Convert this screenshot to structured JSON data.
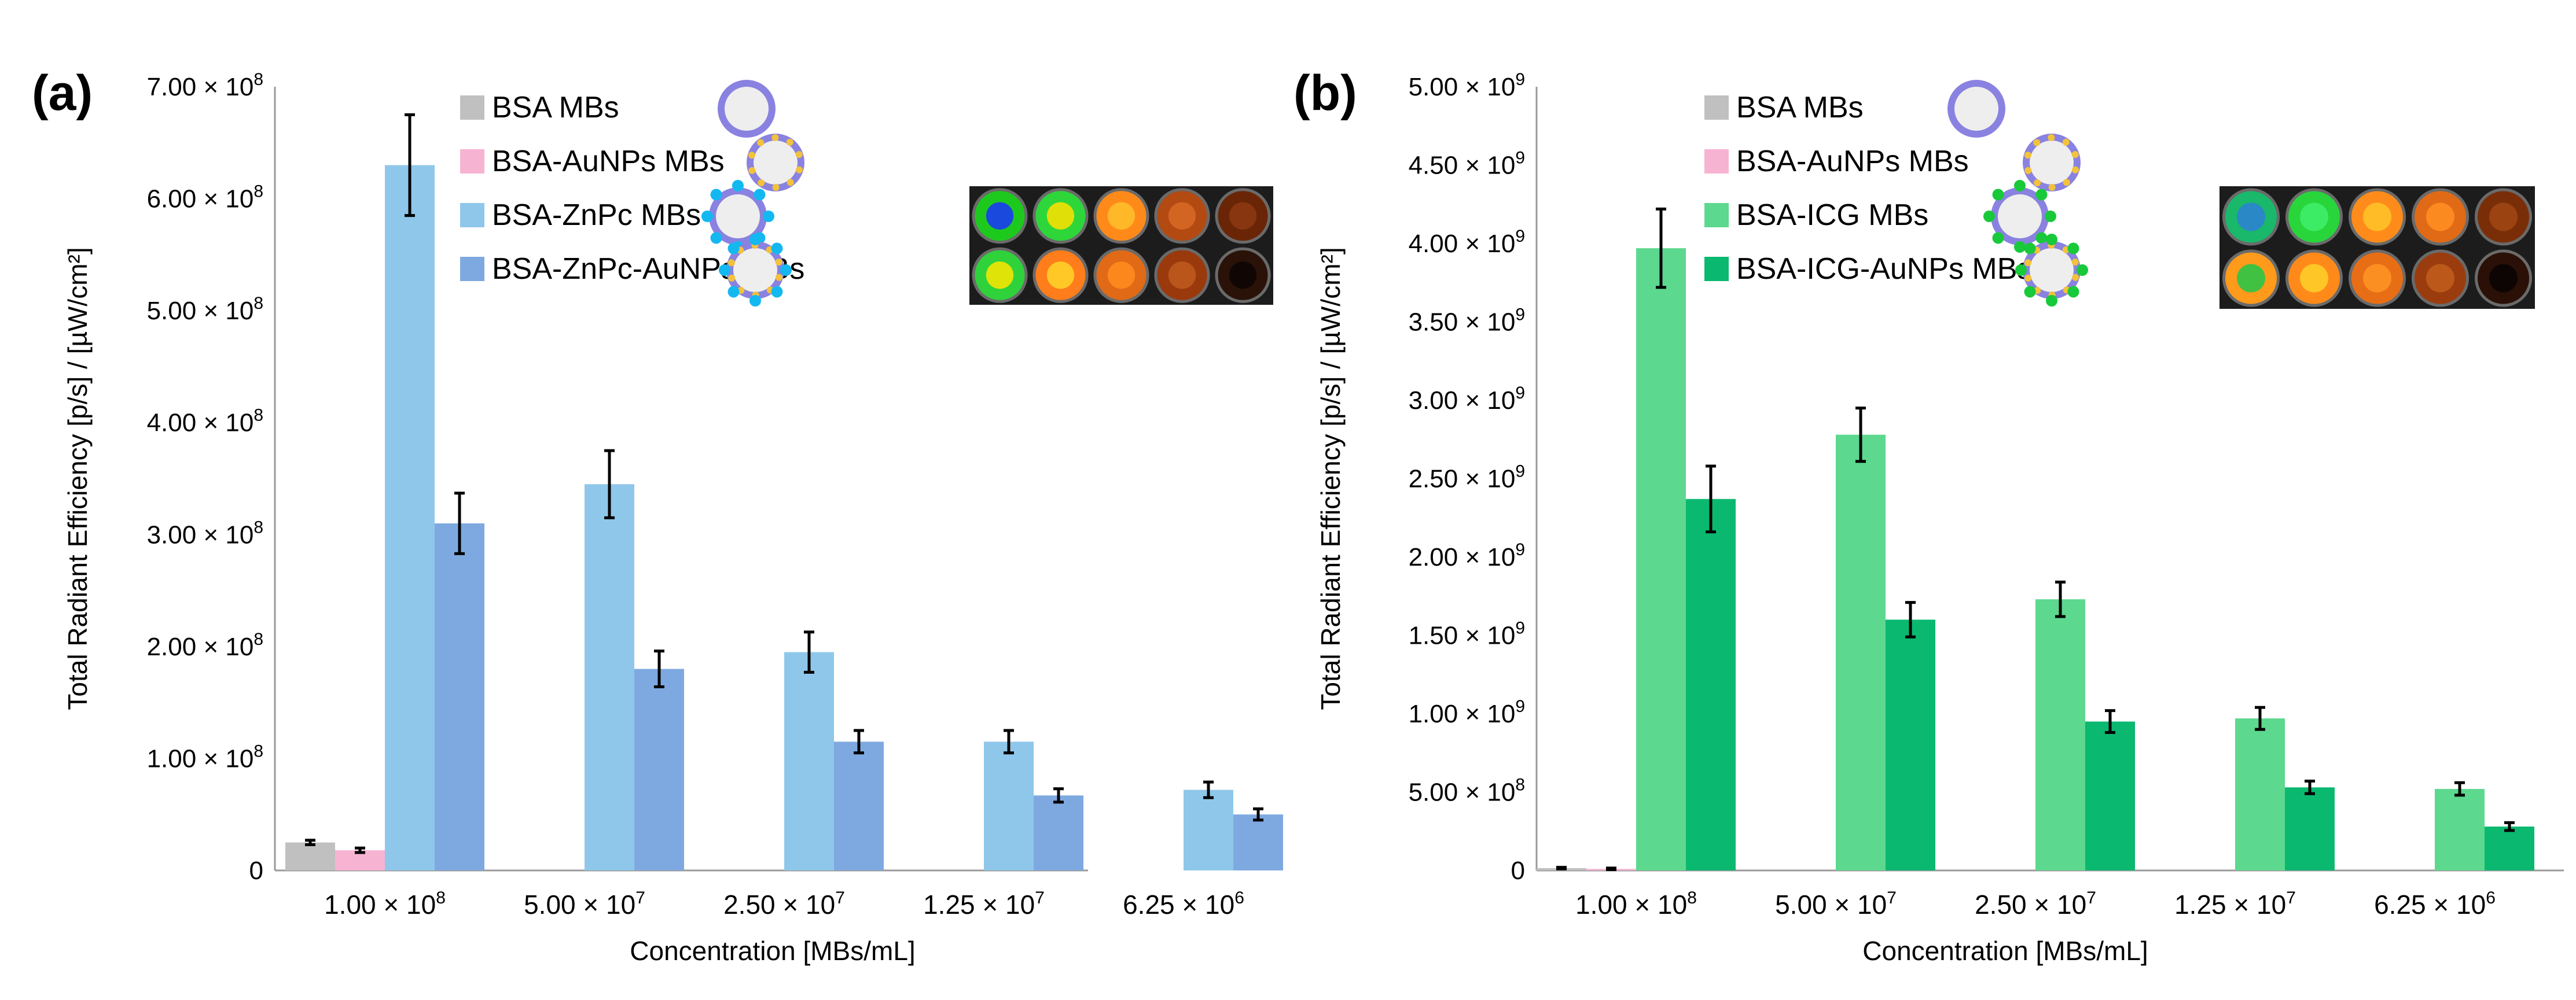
{
  "chart_data": [
    {
      "type": "bar",
      "panel": "(a)",
      "xlabel": "Concentration [MBs/mL]",
      "ylabel": "Total Radiant Efficiency [p/s] / [µW/cm²]",
      "ylim": [
        0,
        700000000
      ],
      "yticks": [
        0,
        100000000,
        200000000,
        300000000,
        400000000,
        500000000,
        600000000,
        700000000
      ],
      "ytick_labels": [
        {
          "base": "0",
          "exp": ""
        },
        {
          "base": "1.00 × 10",
          "exp": "8"
        },
        {
          "base": "2.00 × 10",
          "exp": "8"
        },
        {
          "base": "3.00 × 10",
          "exp": "8"
        },
        {
          "base": "4.00 × 10",
          "exp": "8"
        },
        {
          "base": "5.00 × 10",
          "exp": "8"
        },
        {
          "base": "6.00 × 10",
          "exp": "8"
        },
        {
          "base": "7.00 × 10",
          "exp": "8"
        }
      ],
      "categories": [
        {
          "base": "1.00 × 10",
          "exp": "8"
        },
        {
          "base": "5.00 × 10",
          "exp": "7"
        },
        {
          "base": "2.50 × 10",
          "exp": "7"
        },
        {
          "base": "1.25 × 10",
          "exp": "7"
        },
        {
          "base": "6.25 × 10",
          "exp": "6"
        }
      ],
      "series": [
        {
          "name": "BSA MBs",
          "color": "#c0c0c0",
          "values": [
            25000000,
            null,
            null,
            null,
            null
          ],
          "errors": [
            2000000,
            null,
            null,
            null,
            null
          ]
        },
        {
          "name": "BSA-AuNPs MBs",
          "color": "#f7b3d2",
          "values": [
            18000000,
            null,
            null,
            null,
            null
          ],
          "errors": [
            2000000,
            null,
            null,
            null,
            null
          ]
        },
        {
          "name": "BSA-ZnPc MBs",
          "color": "#8fc7ea",
          "values": [
            630000000,
            345000000,
            195000000,
            115000000,
            72000000
          ],
          "errors": [
            45000000,
            30000000,
            18000000,
            10000000,
            7000000
          ]
        },
        {
          "name": "BSA-ZnPc-AuNPs MBs",
          "color": "#7ea9e0",
          "values": [
            310000000,
            180000000,
            115000000,
            67000000,
            50000000
          ],
          "errors": [
            27000000,
            16000000,
            10000000,
            6000000,
            5000000
          ]
        }
      ],
      "legend_position": "top-center",
      "inset": "fluorescence-well-image"
    },
    {
      "type": "bar",
      "panel": "(b)",
      "xlabel": "Concentration [MBs/mL]",
      "ylabel": "Total Radiant Efficiency [p/s] / [µW/cm²]",
      "ylim": [
        0,
        5000000000
      ],
      "yticks": [
        0,
        500000000,
        1000000000,
        1500000000,
        2000000000,
        2500000000,
        3000000000,
        3500000000,
        4000000000,
        4500000000,
        5000000000
      ],
      "ytick_labels": [
        {
          "base": "0",
          "exp": ""
        },
        {
          "base": "5.00 × 10",
          "exp": "8"
        },
        {
          "base": "1.00 × 10",
          "exp": "9"
        },
        {
          "base": "1.50 × 10",
          "exp": "9"
        },
        {
          "base": "2.00 × 10",
          "exp": "9"
        },
        {
          "base": "2.50 × 10",
          "exp": "9"
        },
        {
          "base": "3.00 × 10",
          "exp": "9"
        },
        {
          "base": "3.50 × 10",
          "exp": "9"
        },
        {
          "base": "4.00 × 10",
          "exp": "9"
        },
        {
          "base": "4.50 × 10",
          "exp": "9"
        },
        {
          "base": "5.00 × 10",
          "exp": "9"
        }
      ],
      "categories": [
        {
          "base": "1.00 × 10",
          "exp": "8"
        },
        {
          "base": "5.00 × 10",
          "exp": "7"
        },
        {
          "base": "2.50 × 10",
          "exp": "7"
        },
        {
          "base": "1.25 × 10",
          "exp": "7"
        },
        {
          "base": "6.25 × 10",
          "exp": "6"
        }
      ],
      "series": [
        {
          "name": "BSA MBs",
          "color": "#c0c0c0",
          "values": [
            15000000,
            null,
            null,
            null,
            null
          ],
          "errors": [
            5000000,
            null,
            null,
            null,
            null
          ]
        },
        {
          "name": "BSA-AuNPs MBs",
          "color": "#f7b3d2",
          "values": [
            10000000,
            null,
            null,
            null,
            null
          ],
          "errors": [
            5000000,
            null,
            null,
            null,
            null
          ]
        },
        {
          "name": "BSA-ICG MBs",
          "color": "#5dd88f",
          "values": [
            3970000000,
            2780000000,
            1730000000,
            970000000,
            520000000
          ],
          "errors": [
            250000000,
            170000000,
            110000000,
            70000000,
            40000000
          ]
        },
        {
          "name": "BSA-ICG-AuNPs MBs",
          "color": "#0bb870",
          "values": [
            2370000000,
            1600000000,
            950000000,
            530000000,
            280000000
          ],
          "errors": [
            210000000,
            110000000,
            70000000,
            40000000,
            25000000
          ]
        }
      ],
      "legend_position": "top-center",
      "inset": "fluorescence-well-image"
    }
  ]
}
